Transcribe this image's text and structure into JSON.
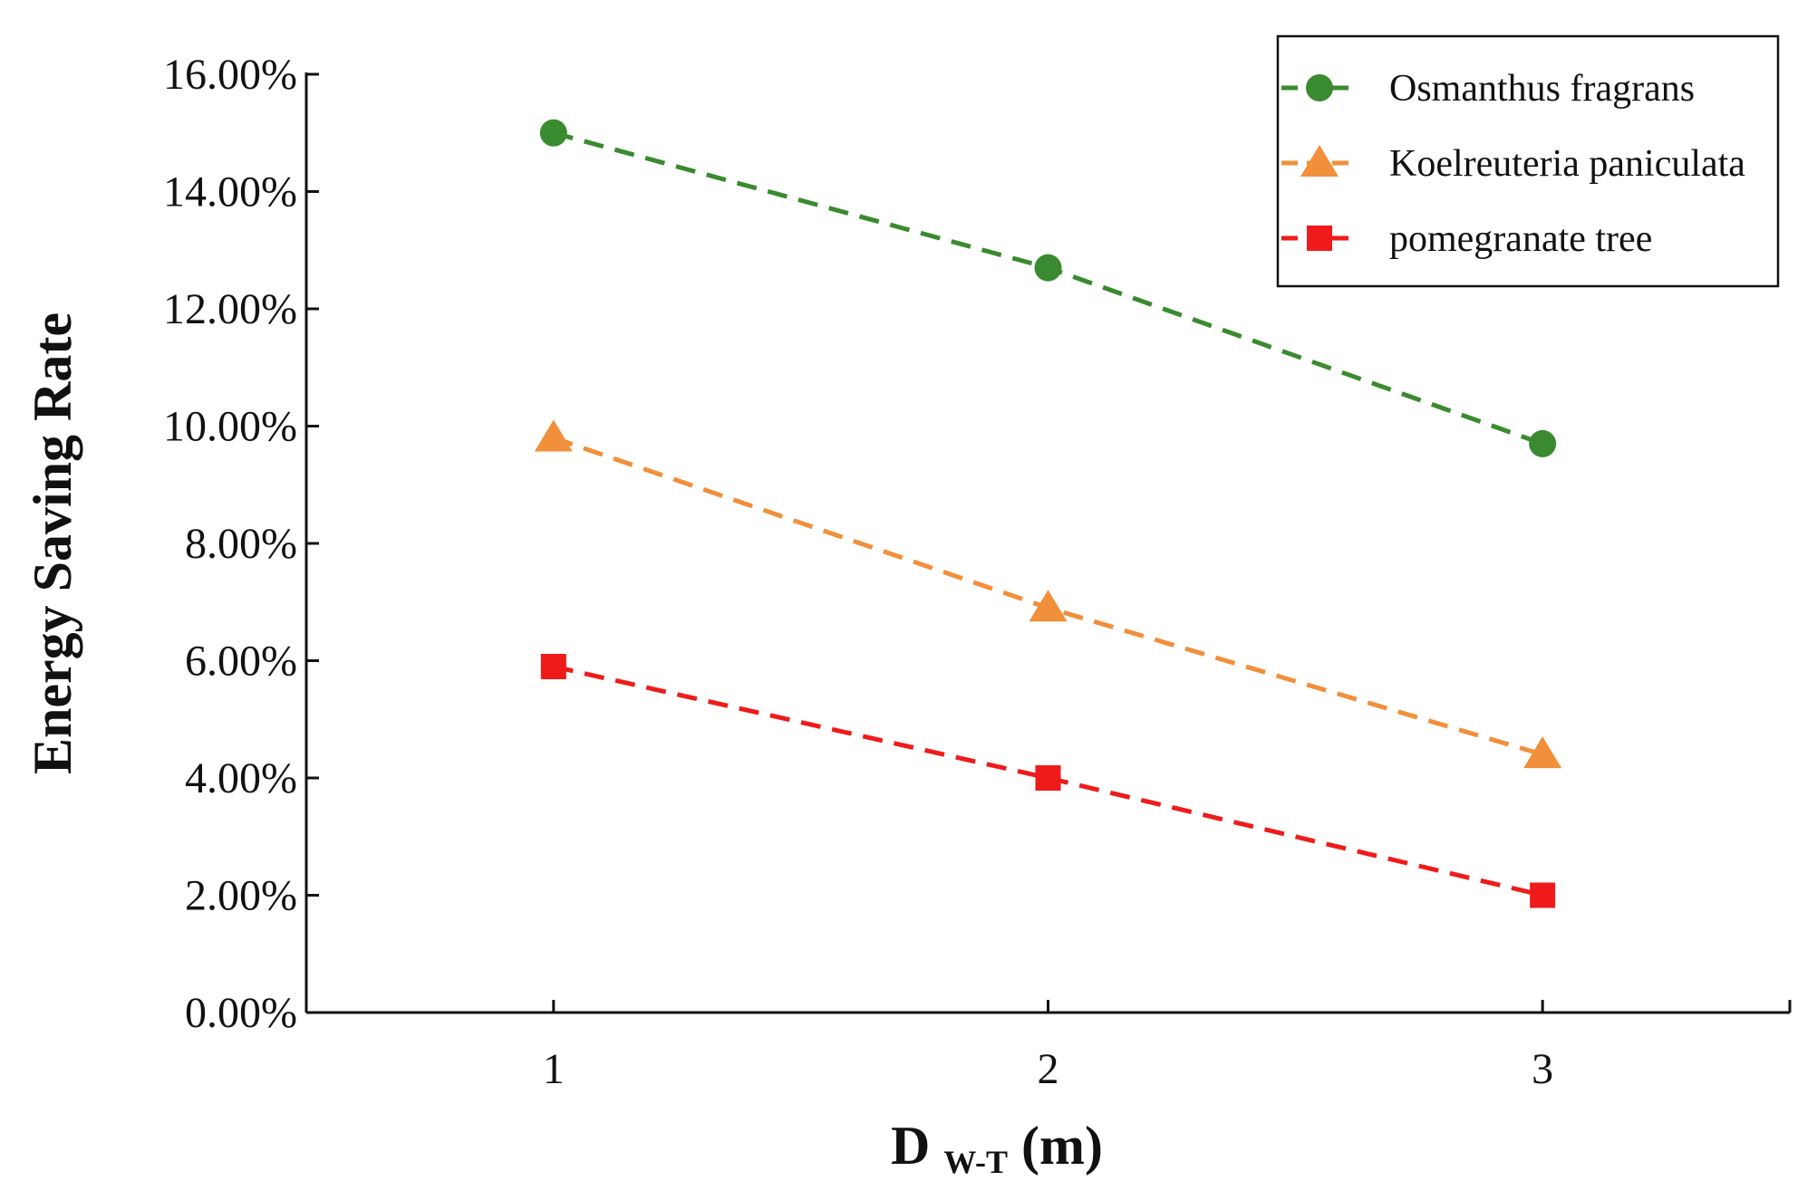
{
  "chart_data": {
    "type": "line",
    "title": "",
    "xlabel": {
      "main": "D",
      "sub": "W-T",
      "suffix": "(m)"
    },
    "ylabel": "Energy Saving Rate",
    "x": [
      1,
      2,
      3
    ],
    "xlim": [
      0.5,
      3.5
    ],
    "ylim": [
      0,
      16
    ],
    "yticks": [
      0,
      2,
      4,
      6,
      8,
      10,
      12,
      14,
      16
    ],
    "ytick_labels": [
      "0.00%",
      "2.00%",
      "4.00%",
      "6.00%",
      "8.00%",
      "10.00%",
      "12.00%",
      "14.00%",
      "16.00%"
    ],
    "xtick_labels": [
      "1",
      "2",
      "3"
    ],
    "grid": false,
    "legend_position": "top-right",
    "series": [
      {
        "name": "Osmanthus fragrans",
        "values": [
          15.0,
          12.7,
          9.7
        ],
        "color": "#3a8a2f",
        "marker": "circle"
      },
      {
        "name": "Koelreuteria paniculata",
        "values": [
          9.8,
          6.9,
          4.4
        ],
        "color": "#f18f3b",
        "marker": "triangle"
      },
      {
        "name": "pomegranate tree",
        "values": [
          5.9,
          4.0,
          2.0
        ],
        "color": "#ef1b1b",
        "marker": "square"
      }
    ]
  }
}
